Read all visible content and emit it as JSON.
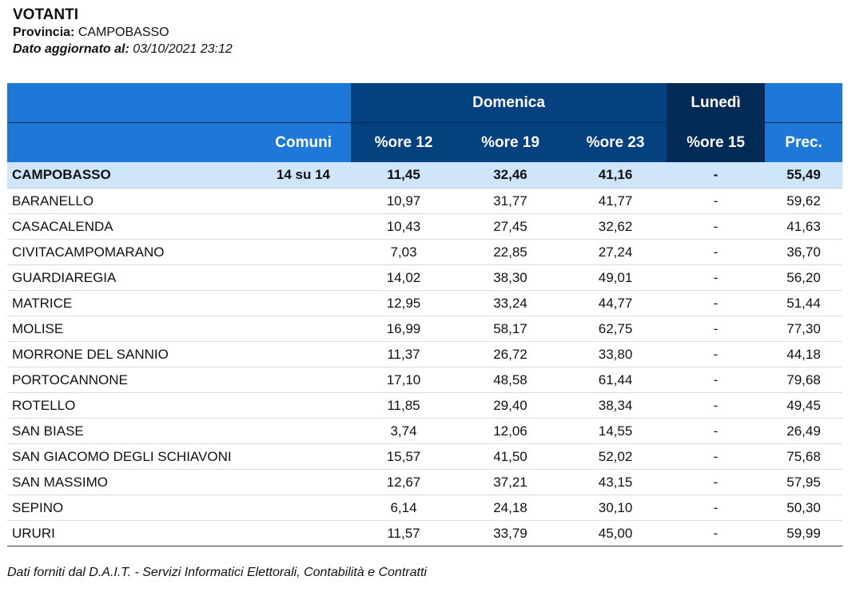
{
  "header": {
    "title": "VOTANTI",
    "provincia_label": "Provincia:",
    "provincia_value": "CAMPOBASSO",
    "updated_label": "Dato aggiornato al:",
    "updated_value": "03/10/2021 23:12"
  },
  "table": {
    "group_headers": {
      "domenica": "Domenica",
      "lunedi": "Lunedì"
    },
    "columns": {
      "comuni": "Comuni",
      "ore12": "%ore 12",
      "ore19": "%ore 19",
      "ore23": "%ore 23",
      "ore15": "%ore 15",
      "prec": "Prec."
    },
    "total": {
      "name": "CAMPOBASSO",
      "count": "14 su 14",
      "ore12": "11,45",
      "ore19": "32,46",
      "ore23": "41,16",
      "ore15": "-",
      "prec": "55,49"
    },
    "rows": [
      {
        "name": "BARANELLO",
        "ore12": "10,97",
        "ore19": "31,77",
        "ore23": "41,77",
        "ore15": "-",
        "prec": "59,62"
      },
      {
        "name": "CASACALENDA",
        "ore12": "10,43",
        "ore19": "27,45",
        "ore23": "32,62",
        "ore15": "-",
        "prec": "41,63"
      },
      {
        "name": "CIVITACAMPOMARANO",
        "ore12": "7,03",
        "ore19": "22,85",
        "ore23": "27,24",
        "ore15": "-",
        "prec": "36,70"
      },
      {
        "name": "GUARDIAREGIA",
        "ore12": "14,02",
        "ore19": "38,30",
        "ore23": "49,01",
        "ore15": "-",
        "prec": "56,20"
      },
      {
        "name": "MATRICE",
        "ore12": "12,95",
        "ore19": "33,24",
        "ore23": "44,77",
        "ore15": "-",
        "prec": "51,44"
      },
      {
        "name": "MOLISE",
        "ore12": "16,99",
        "ore19": "58,17",
        "ore23": "62,75",
        "ore15": "-",
        "prec": "77,30"
      },
      {
        "name": "MORRONE DEL SANNIO",
        "ore12": "11,37",
        "ore19": "26,72",
        "ore23": "33,80",
        "ore15": "-",
        "prec": "44,18"
      },
      {
        "name": "PORTOCANNONE",
        "ore12": "17,10",
        "ore19": "48,58",
        "ore23": "61,44",
        "ore15": "-",
        "prec": "79,68"
      },
      {
        "name": "ROTELLO",
        "ore12": "11,85",
        "ore19": "29,40",
        "ore23": "38,34",
        "ore15": "-",
        "prec": "49,45"
      },
      {
        "name": "SAN BIASE",
        "ore12": "3,74",
        "ore19": "12,06",
        "ore23": "14,55",
        "ore15": "-",
        "prec": "26,49"
      },
      {
        "name": "SAN GIACOMO DEGLI SCHIAVONI",
        "ore12": "15,57",
        "ore19": "41,50",
        "ore23": "52,02",
        "ore15": "-",
        "prec": "75,68"
      },
      {
        "name": "SAN MASSIMO",
        "ore12": "12,67",
        "ore19": "37,21",
        "ore23": "43,15",
        "ore15": "-",
        "prec": "57,95"
      },
      {
        "name": "SEPINO",
        "ore12": "6,14",
        "ore19": "24,18",
        "ore23": "30,10",
        "ore15": "-",
        "prec": "50,30"
      },
      {
        "name": "URURI",
        "ore12": "11,57",
        "ore19": "33,79",
        "ore23": "45,00",
        "ore15": "-",
        "prec": "59,99"
      }
    ]
  },
  "footer": {
    "text": "Dati forniti dal D.A.I.T. - Servizi Informatici Elettorali, Contabilità e Contratti"
  },
  "colors": {
    "header_blue": "#1e78d7",
    "domenica_navy": "#05407f",
    "lunedi_dark": "#042a56",
    "total_row": "#cfe5fa"
  }
}
